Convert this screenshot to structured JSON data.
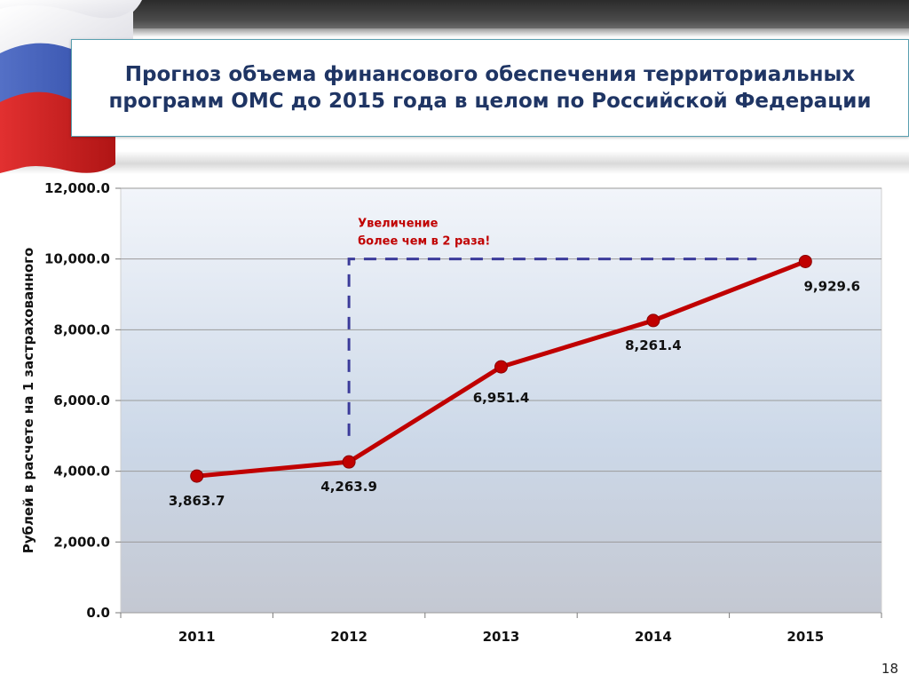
{
  "title": "Прогноз объема финансового обеспечения территориальных программ ОМС до 2015 года в целом по Российской Федерации",
  "page_number": "18",
  "colors": {
    "line": "#c00000",
    "marker": "#c00000",
    "dashed": "#3b3b9a",
    "annotation": "#c00000",
    "title": "#1f3564"
  },
  "chart_data": {
    "type": "line",
    "title": "",
    "ylabel": "Рублей в расчете на 1 застрахованного",
    "xlabel": "",
    "ylim": [
      0,
      12000
    ],
    "y_ticks": [
      "0.0",
      "2,000.0",
      "4,000.0",
      "6,000.0",
      "8,000.0",
      "10,000.0",
      "12,000.0"
    ],
    "y_tick_values": [
      0,
      2000,
      4000,
      6000,
      8000,
      10000,
      12000
    ],
    "grid": true,
    "legend": "none",
    "categories": [
      "2011",
      "2012",
      "2013",
      "2014",
      "2015"
    ],
    "series": [
      {
        "values": [
          3863.7,
          4263.9,
          6951.4,
          8261.4,
          9929.6
        ],
        "labels": [
          "3,863.7",
          "4,263.9",
          "6,951.4",
          "8,261.4",
          "9,929.6"
        ]
      }
    ],
    "annotation": {
      "line1": "Увеличение",
      "line2": "более чем в 2 раза!",
      "from_category": "2012",
      "level_low": 5000,
      "level_high": 10000,
      "to_category": "2015"
    }
  }
}
